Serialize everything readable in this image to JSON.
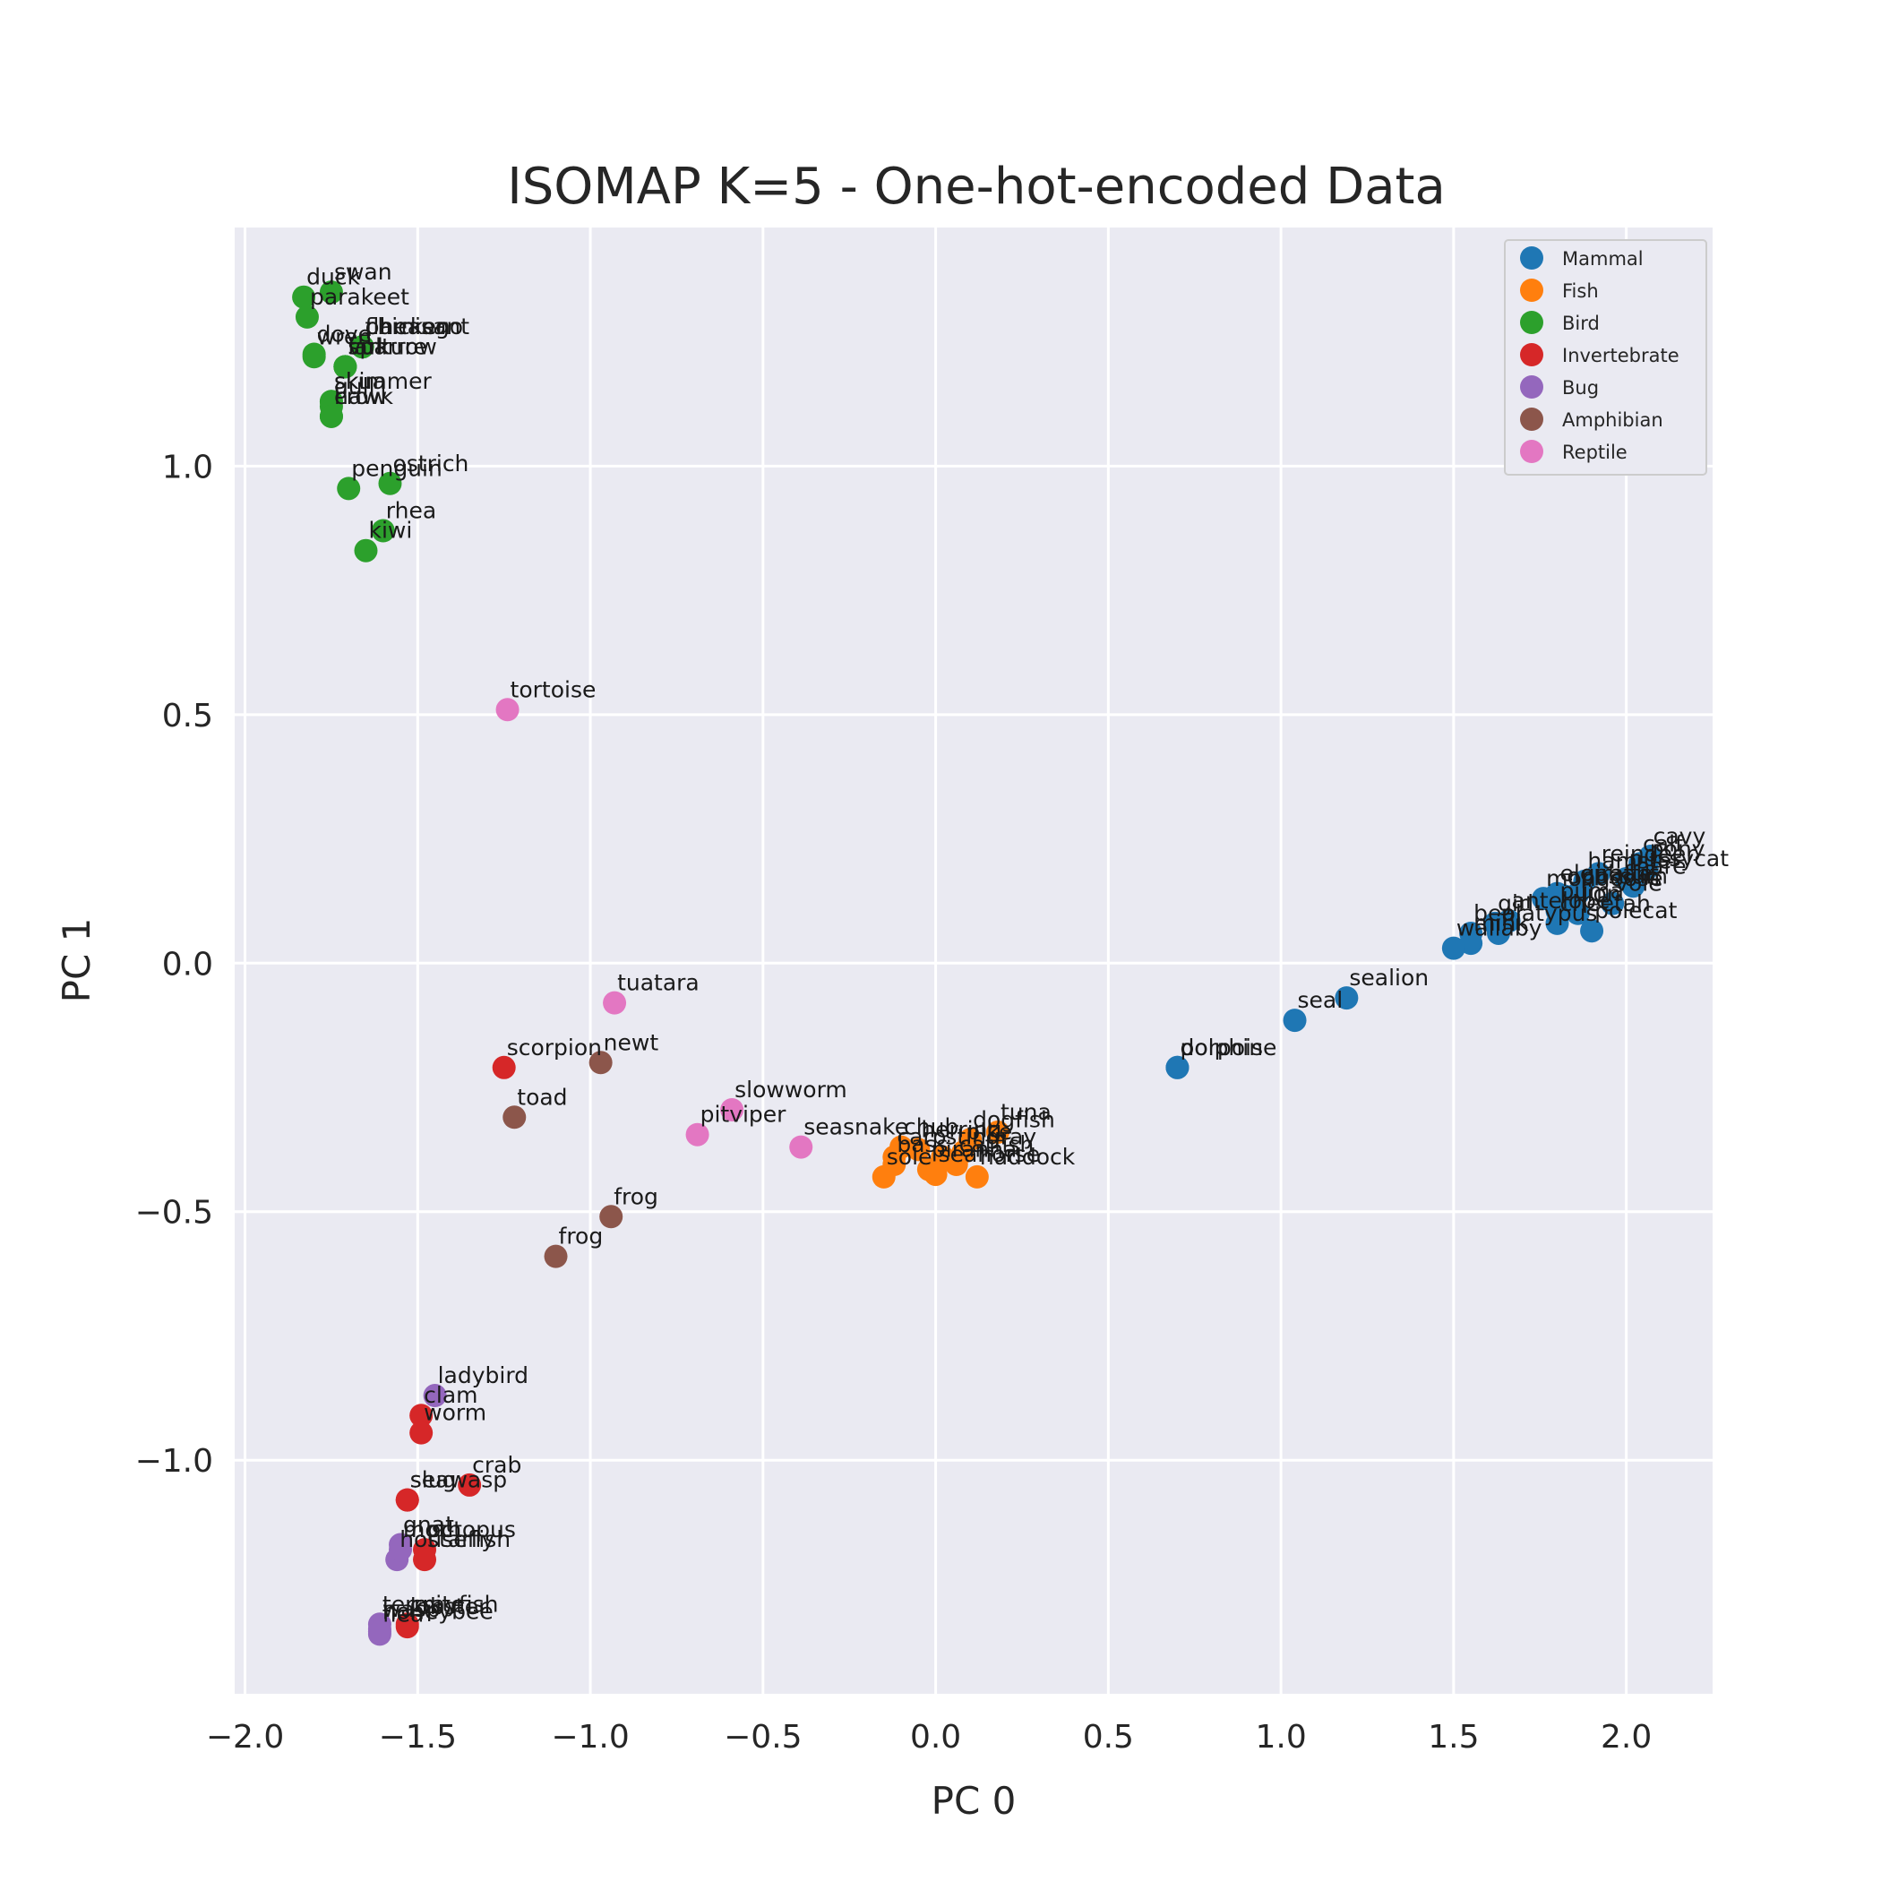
{
  "chart_data": {
    "type": "scatter",
    "title": "ISOMAP K=5 - One-hot-encoded Data",
    "xlabel": "PC 0",
    "ylabel": "PC 1",
    "xlim": [
      -2.03,
      2.25
    ],
    "ylim": [
      -1.47,
      1.48
    ],
    "xticks": [
      -2.0,
      -1.5,
      -1.0,
      -0.5,
      0.0,
      0.5,
      1.0,
      1.5,
      2.0
    ],
    "yticks": [
      -1.0,
      -0.5,
      0.0,
      0.5,
      1.0
    ],
    "grid": true,
    "legend_position": "top-right",
    "series": [
      {
        "name": "Mammal",
        "color": "#1f77b4",
        "points": [
          {
            "label": "cavy",
            "x": 2.07,
            "y": 0.215
          },
          {
            "label": "calf",
            "x": 2.04,
            "y": 0.2
          },
          {
            "label": "pony",
            "x": 2.06,
            "y": 0.19
          },
          {
            "label": "reindeer",
            "x": 1.92,
            "y": 0.18
          },
          {
            "label": "hamster",
            "x": 1.88,
            "y": 0.165
          },
          {
            "label": "pussycat",
            "x": 2.0,
            "y": 0.17
          },
          {
            "label": "hare",
            "x": 2.02,
            "y": 0.155
          },
          {
            "label": "elephant",
            "x": 1.8,
            "y": 0.14
          },
          {
            "label": "giraffe",
            "x": 1.86,
            "y": 0.14
          },
          {
            "label": "mongoose",
            "x": 1.76,
            "y": 0.13
          },
          {
            "label": "opossum",
            "x": 1.82,
            "y": 0.135
          },
          {
            "label": "vole",
            "x": 1.96,
            "y": 0.12
          },
          {
            "label": "puma",
            "x": 1.8,
            "y": 0.105
          },
          {
            "label": "lion",
            "x": 1.86,
            "y": 0.1
          },
          {
            "label": "girl",
            "x": 1.62,
            "y": 0.08
          },
          {
            "label": "antelope",
            "x": 1.66,
            "y": 0.085
          },
          {
            "label": "cheetah",
            "x": 1.8,
            "y": 0.08
          },
          {
            "label": "bear",
            "x": 1.55,
            "y": 0.06
          },
          {
            "label": "polecat",
            "x": 1.9,
            "y": 0.065
          },
          {
            "label": "platypus",
            "x": 1.63,
            "y": 0.06
          },
          {
            "label": "mink",
            "x": 1.55,
            "y": 0.04
          },
          {
            "label": "wallaby",
            "x": 1.5,
            "y": 0.03
          },
          {
            "label": "sealion",
            "x": 1.19,
            "y": -0.07
          },
          {
            "label": "seal",
            "x": 1.04,
            "y": -0.115
          },
          {
            "label": "dolphin",
            "x": 0.7,
            "y": -0.21
          },
          {
            "label": "porpoise",
            "x": 0.7,
            "y": -0.21
          }
        ]
      },
      {
        "name": "Fish",
        "color": "#ff7f0e",
        "points": [
          {
            "label": "dogfish",
            "x": 0.1,
            "y": -0.355
          },
          {
            "label": "tuna",
            "x": 0.18,
            "y": -0.34
          },
          {
            "label": "chub",
            "x": -0.1,
            "y": -0.37
          },
          {
            "label": "herring",
            "x": -0.05,
            "y": -0.375
          },
          {
            "label": "pike",
            "x": 0.08,
            "y": -0.38
          },
          {
            "label": "stingray",
            "x": 0.02,
            "y": -0.39
          },
          {
            "label": "carp",
            "x": -0.12,
            "y": -0.39
          },
          {
            "label": "catfish",
            "x": 0.06,
            "y": -0.405
          },
          {
            "label": "bass",
            "x": -0.12,
            "y": -0.405
          },
          {
            "label": "piranha",
            "x": -0.02,
            "y": -0.415
          },
          {
            "label": "seahorse",
            "x": 0.0,
            "y": -0.425
          },
          {
            "label": "sole",
            "x": -0.15,
            "y": -0.43
          },
          {
            "label": "haddock",
            "x": 0.12,
            "y": -0.43
          }
        ]
      },
      {
        "name": "Bird",
        "color": "#2ca02c",
        "points": [
          {
            "label": "duck",
            "x": -1.83,
            "y": 1.34
          },
          {
            "label": "swan",
            "x": -1.75,
            "y": 1.35
          },
          {
            "label": "parakeet",
            "x": -1.82,
            "y": 1.3
          },
          {
            "label": "dove",
            "x": -1.8,
            "y": 1.225
          },
          {
            "label": "chicken",
            "x": -1.66,
            "y": 1.24
          },
          {
            "label": "pheasant",
            "x": -1.66,
            "y": 1.24
          },
          {
            "label": "flamingo",
            "x": -1.66,
            "y": 1.24
          },
          {
            "label": "wren",
            "x": -1.8,
            "y": 1.22
          },
          {
            "label": "lark",
            "x": -1.71,
            "y": 1.2
          },
          {
            "label": "sparrow",
            "x": -1.71,
            "y": 1.2
          },
          {
            "label": "skua",
            "x": -1.75,
            "y": 1.13
          },
          {
            "label": "vulture",
            "x": -1.71,
            "y": 1.2
          },
          {
            "label": "skimmer",
            "x": -1.75,
            "y": 1.13
          },
          {
            "label": "gull",
            "x": -1.75,
            "y": 1.12
          },
          {
            "label": "crow",
            "x": -1.75,
            "y": 1.1
          },
          {
            "label": "hawk",
            "x": -1.75,
            "y": 1.1
          },
          {
            "label": "penguin",
            "x": -1.7,
            "y": 0.955
          },
          {
            "label": "ostrich",
            "x": -1.58,
            "y": 0.965
          },
          {
            "label": "rhea",
            "x": -1.6,
            "y": 0.87
          },
          {
            "label": "kiwi",
            "x": -1.65,
            "y": 0.83
          }
        ]
      },
      {
        "name": "Invertebrate",
        "color": "#d62728",
        "points": [
          {
            "label": "scorpion",
            "x": -1.25,
            "y": -0.21
          },
          {
            "label": "clam",
            "x": -1.49,
            "y": -0.91
          },
          {
            "label": "worm",
            "x": -1.49,
            "y": -0.945
          },
          {
            "label": "crab",
            "x": -1.35,
            "y": -1.05
          },
          {
            "label": "slug",
            "x": -1.53,
            "y": -1.08
          },
          {
            "label": "seawasp",
            "x": -1.53,
            "y": -1.08
          },
          {
            "label": "octopus",
            "x": -1.48,
            "y": -1.18
          },
          {
            "label": "starfish",
            "x": -1.48,
            "y": -1.2
          },
          {
            "label": "crayfish",
            "x": -1.53,
            "y": -1.33
          },
          {
            "label": "lobster",
            "x": -1.53,
            "y": -1.335
          }
        ]
      },
      {
        "name": "Bug",
        "color": "#9467bd",
        "points": [
          {
            "label": "ladybird",
            "x": -1.45,
            "y": -0.87
          },
          {
            "label": "gnat",
            "x": -1.55,
            "y": -1.17
          },
          {
            "label": "housefly",
            "x": -1.56,
            "y": -1.2
          },
          {
            "label": "moth",
            "x": -1.55,
            "y": -1.18
          },
          {
            "label": "termite",
            "x": -1.61,
            "y": -1.33
          },
          {
            "label": "wasp",
            "x": -1.61,
            "y": -1.34
          },
          {
            "label": "flea",
            "x": -1.61,
            "y": -1.35
          },
          {
            "label": "honeybee",
            "x": -1.61,
            "y": -1.345
          }
        ]
      },
      {
        "name": "Amphibian",
        "color": "#8c564b",
        "points": [
          {
            "label": "newt",
            "x": -0.97,
            "y": -0.2
          },
          {
            "label": "toad",
            "x": -1.22,
            "y": -0.31
          },
          {
            "label": "frog",
            "x": -0.94,
            "y": -0.51
          },
          {
            "label": "frog",
            "x": -1.1,
            "y": -0.59
          }
        ]
      },
      {
        "name": "Reptile",
        "color": "#e377c2",
        "points": [
          {
            "label": "tortoise",
            "x": -1.24,
            "y": 0.51
          },
          {
            "label": "tuatara",
            "x": -0.93,
            "y": -0.08
          },
          {
            "label": "slowworm",
            "x": -0.59,
            "y": -0.295
          },
          {
            "label": "pitviper",
            "x": -0.69,
            "y": -0.345
          },
          {
            "label": "seasnake",
            "x": -0.39,
            "y": -0.37
          }
        ]
      }
    ]
  }
}
